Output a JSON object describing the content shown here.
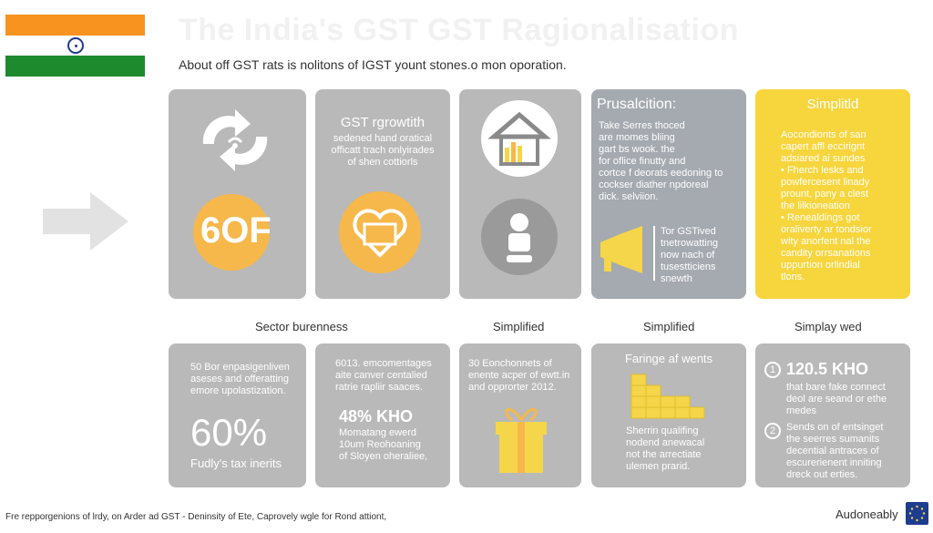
{
  "header": {
    "title": "The India's GST GST Ragionalisation",
    "subtitle": "About off GST rats is nolitons of IGST yount stones.o mon oporation."
  },
  "top_cards": [
    {
      "id": "c1",
      "badge": "6OF"
    },
    {
      "id": "c2",
      "title": "GST rgrowtith",
      "text": [
        "sedened hand oratical",
        "officatt trach onlyirades",
        "of shen cottiorls"
      ]
    },
    {
      "id": "c3"
    },
    {
      "id": "c4",
      "title": "Prusalcition:",
      "text": [
        "Take    Serres thoced",
        "are        momes bliing",
        "         gart bs wook. the",
        "         for   oflice finutty and",
        "cortce f deorats eedoning to",
        "cockser diather npdoreal",
        "dick.             selviion."
      ],
      "text2": [
        "Tor GSTived",
        "tnetrowatting",
        "now nach of",
        "tusestticiens",
        "snewth"
      ]
    },
    {
      "id": "c5",
      "title": "Simplitld",
      "text": [
        "Aocondionts of san",
        "capert affl eccirignt",
        "adsiared ai sundes",
        "• Fherch lesks and",
        "powfercesent linady",
        "prount, pany a clest",
        "the lilkioneation",
        "• Renealdings got",
        "oraliverty ar tondsior",
        "wity anorfent nal the",
        "candity orrsanations",
        "uppurtion orlindial",
        "tlons."
      ]
    }
  ],
  "section_labels": [
    "Sector burenness",
    "Simplified",
    "Simplified",
    "Simplay wed"
  ],
  "bottom_cards": [
    {
      "id": "d1",
      "text": [
        "50 Bor enpasigenliven",
        "aseses and offeratting",
        "emore upolastization."
      ],
      "big": "60%",
      "caption": "Fudly's tax inerits"
    },
    {
      "id": "d2",
      "text": [
        "6013. emcomentages",
        "aite canver centalied",
        "ratrie rapliir saaces."
      ],
      "big": "48% KHO",
      "caption": [
        "Momatang ewerd",
        "10um Reohoaning",
        "of Sloyen oheraliee,"
      ]
    },
    {
      "id": "d3",
      "text": [
        "30 Eonchonnets of",
        "enente acper of ewtt.in",
        "and opprorter 2012."
      ]
    },
    {
      "id": "d4",
      "title": "Faringe af wents",
      "caption": [
        "Sherrin qualifing",
        "nodend anewacal",
        "not the arrectiate",
        "ulemen prarid."
      ]
    },
    {
      "id": "d5",
      "items": [
        {
          "num": "1",
          "head": "120.5 KHO",
          "text": [
            "that bare fake connect",
            "deol are seand or ethe",
            "medes"
          ]
        },
        {
          "num": "2",
          "text": [
            "Sends on of entsinget",
            "the seerres sumanits",
            "decential antraces of",
            "escurerienent inniting",
            "dreck out erties."
          ]
        }
      ]
    }
  ],
  "footer": {
    "text": "Fre repporgenions of lrdy, on Arder ad GST - Deninsity of Ete, Caprovely wgle for Rond attiont,",
    "brand": "Audoneably"
  },
  "colors": {
    "card_gray": "#b9b9b9",
    "card_blue_gray": "#a5a9b0",
    "card_yellow": "#f7d53c",
    "accent_orange": "#f6b84a",
    "icon_yellow": "#f5d64a"
  }
}
